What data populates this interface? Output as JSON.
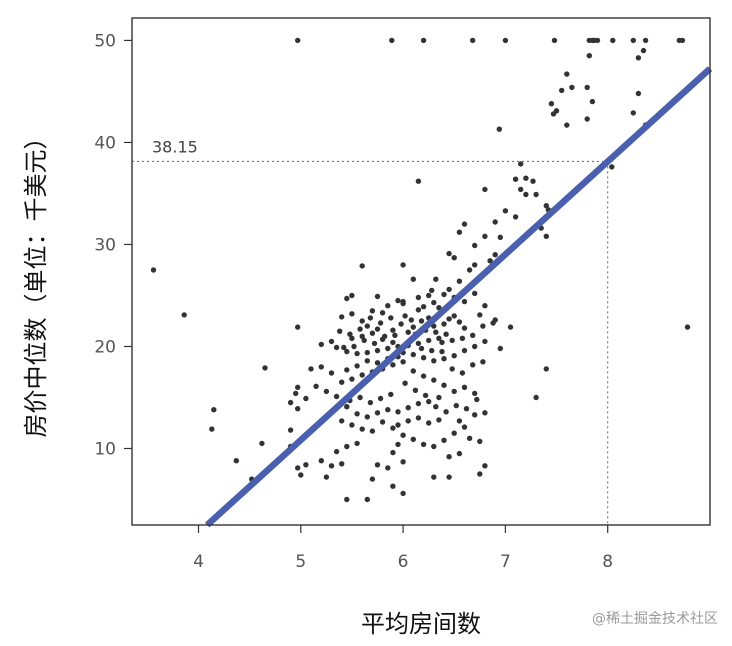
{
  "chart_data": {
    "type": "scatter",
    "xlabel": "平均房间数",
    "ylabel": "房价中位数（单位：千美元）",
    "xlim": [
      3.35,
      9.0
    ],
    "ylim": [
      2.5,
      52.2
    ],
    "xticks": [
      4,
      5,
      6,
      7,
      8
    ],
    "yticks": [
      10,
      20,
      30,
      40,
      50
    ],
    "grid": false,
    "regression_line": {
      "slope": 9.1,
      "intercept": -34.67,
      "color": "#4a5fad"
    },
    "annotation": {
      "x": 8,
      "y": 38.15,
      "label": "38.15"
    },
    "colors": {
      "points": "#333333",
      "line": "#4a5fad",
      "axis": "#333333"
    },
    "points": [
      [
        4.97,
        50
      ],
      [
        5.89,
        50
      ],
      [
        6.2,
        50
      ],
      [
        6.68,
        50
      ],
      [
        7.0,
        50
      ],
      [
        7.48,
        50
      ],
      [
        7.82,
        50
      ],
      [
        7.85,
        50
      ],
      [
        7.87,
        50
      ],
      [
        7.9,
        50
      ],
      [
        8.05,
        50
      ],
      [
        8.25,
        50
      ],
      [
        8.37,
        50
      ],
      [
        8.7,
        50
      ],
      [
        8.73,
        50
      ],
      [
        8.35,
        49
      ],
      [
        8.3,
        48.3
      ],
      [
        7.82,
        48.5
      ],
      [
        7.6,
        46.7
      ],
      [
        7.65,
        45.4
      ],
      [
        7.8,
        45.4
      ],
      [
        7.55,
        45.1
      ],
      [
        8.3,
        44.8
      ],
      [
        7.45,
        43.8
      ],
      [
        7.5,
        43.1
      ],
      [
        7.47,
        42.8
      ],
      [
        7.6,
        41.7
      ],
      [
        8.37,
        41.7
      ],
      [
        7.8,
        42.3
      ],
      [
        6.94,
        41.3
      ],
      [
        7.85,
        44.0
      ],
      [
        8.25,
        42.9
      ],
      [
        8.04,
        37.6
      ],
      [
        7.15,
        37.9
      ],
      [
        7.2,
        36.5
      ],
      [
        7.27,
        36.2
      ],
      [
        6.15,
        36.2
      ],
      [
        7.1,
        36.4
      ],
      [
        7.42,
        33.4
      ],
      [
        7.15,
        35.4
      ],
      [
        6.8,
        35.4
      ],
      [
        7.3,
        34.9
      ],
      [
        7.2,
        34.9
      ],
      [
        7.0,
        33.3
      ],
      [
        7.4,
        33.8
      ],
      [
        7.35,
        31.6
      ],
      [
        6.9,
        32.2
      ],
      [
        7.1,
        32.7
      ],
      [
        7.4,
        30.8
      ],
      [
        6.6,
        32.0
      ],
      [
        6.8,
        30.8
      ],
      [
        6.95,
        30.7
      ],
      [
        6.55,
        31.2
      ],
      [
        6.7,
        29.9
      ],
      [
        6.45,
        29.1
      ],
      [
        6.5,
        28.7
      ],
      [
        6.9,
        29.0
      ],
      [
        6.85,
        28.4
      ],
      [
        6.7,
        28.0
      ],
      [
        6.65,
        27.5
      ],
      [
        6.0,
        28.0
      ],
      [
        6.32,
        26.6
      ],
      [
        6.55,
        26.4
      ],
      [
        6.1,
        26.6
      ],
      [
        6.25,
        25.0
      ],
      [
        5.6,
        27.9
      ],
      [
        6.4,
        25.1
      ],
      [
        6.5,
        24.8
      ],
      [
        6.6,
        24.4
      ],
      [
        6.8,
        24.0
      ],
      [
        6.75,
        23.1
      ],
      [
        6.9,
        22.6
      ],
      [
        7.05,
        21.9
      ],
      [
        6.3,
        24.3
      ],
      [
        6.2,
        23.9
      ],
      [
        6.15,
        23.6
      ],
      [
        6.0,
        24.2
      ],
      [
        5.95,
        24.5
      ],
      [
        5.85,
        24.0
      ],
      [
        5.8,
        23.3
      ],
      [
        5.7,
        23.5
      ],
      [
        5.5,
        23.2
      ],
      [
        5.4,
        22.9
      ],
      [
        5.6,
        22.5
      ],
      [
        5.65,
        22.0
      ],
      [
        5.75,
        21.7
      ],
      [
        5.9,
        21.6
      ],
      [
        6.05,
        21.4
      ],
      [
        6.12,
        21.2
      ],
      [
        6.2,
        21.7
      ],
      [
        6.3,
        22.0
      ],
      [
        6.4,
        22.2
      ],
      [
        6.45,
        22.7
      ],
      [
        6.5,
        23.0
      ],
      [
        6.55,
        22.4
      ],
      [
        6.6,
        21.8
      ],
      [
        6.42,
        21.2
      ],
      [
        6.35,
        20.8
      ],
      [
        6.25,
        20.6
      ],
      [
        6.15,
        20.3
      ],
      [
        6.05,
        20.1
      ],
      [
        5.95,
        20.0
      ],
      [
        5.85,
        19.8
      ],
      [
        5.75,
        19.6
      ],
      [
        5.65,
        19.4
      ],
      [
        5.55,
        19.3
      ],
      [
        5.45,
        19.5
      ],
      [
        5.35,
        19.9
      ],
      [
        5.3,
        20.5
      ],
      [
        5.2,
        20.2
      ],
      [
        5.5,
        20.8
      ],
      [
        5.6,
        21.0
      ],
      [
        5.7,
        21.3
      ],
      [
        5.8,
        20.7
      ],
      [
        5.9,
        20.4
      ],
      [
        6.0,
        19.4
      ],
      [
        6.1,
        19.2
      ],
      [
        6.2,
        18.9
      ],
      [
        6.3,
        18.6
      ],
      [
        6.4,
        18.8
      ],
      [
        6.5,
        19.1
      ],
      [
        6.6,
        19.6
      ],
      [
        6.7,
        20.0
      ],
      [
        6.8,
        20.5
      ],
      [
        6.95,
        19.8
      ],
      [
        6.0,
        18.5
      ],
      [
        5.9,
        18.2
      ],
      [
        5.8,
        17.8
      ],
      [
        5.7,
        17.5
      ],
      [
        5.6,
        17.2
      ],
      [
        5.5,
        16.8
      ],
      [
        5.4,
        16.5
      ],
      [
        5.3,
        17.4
      ],
      [
        5.2,
        18.0
      ],
      [
        5.1,
        17.8
      ],
      [
        6.1,
        17.6
      ],
      [
        6.2,
        17.1
      ],
      [
        6.3,
        16.7
      ],
      [
        6.4,
        16.2
      ],
      [
        6.5,
        15.6
      ],
      [
        6.6,
        16.0
      ],
      [
        6.7,
        15.4
      ],
      [
        6.35,
        15.0
      ],
      [
        6.25,
        14.6
      ],
      [
        6.15,
        14.4
      ],
      [
        6.05,
        14.0
      ],
      [
        5.95,
        13.6
      ],
      [
        5.85,
        13.8
      ],
      [
        5.75,
        13.5
      ],
      [
        5.65,
        13.1
      ],
      [
        5.55,
        13.4
      ],
      [
        5.45,
        14.1
      ],
      [
        5.35,
        15.1
      ],
      [
        5.25,
        15.6
      ],
      [
        5.15,
        16.1
      ],
      [
        5.05,
        14.9
      ],
      [
        4.97,
        13.9
      ],
      [
        4.9,
        14.5
      ],
      [
        4.97,
        16.0
      ],
      [
        4.95,
        15.4
      ],
      [
        5.4,
        12.7
      ],
      [
        5.5,
        12.3
      ],
      [
        5.6,
        11.9
      ],
      [
        5.7,
        11.7
      ],
      [
        5.8,
        12.6
      ],
      [
        5.9,
        12.0
      ],
      [
        6.0,
        11.3
      ],
      [
        6.1,
        10.9
      ],
      [
        6.2,
        10.4
      ],
      [
        6.3,
        10.2
      ],
      [
        6.4,
        10.8
      ],
      [
        6.5,
        11.5
      ],
      [
        6.6,
        12.1
      ],
      [
        6.7,
        13.3
      ],
      [
        6.8,
        13.5
      ],
      [
        5.55,
        10.5
      ],
      [
        5.45,
        10.2
      ],
      [
        5.35,
        9.7
      ],
      [
        5.9,
        9.6
      ],
      [
        5.95,
        10.4
      ],
      [
        6.55,
        9.5
      ],
      [
        5.2,
        8.8
      ],
      [
        5.3,
        8.3
      ],
      [
        5.4,
        8.5
      ],
      [
        5.75,
        8.4
      ],
      [
        5.85,
        8.1
      ],
      [
        6.0,
        8.7
      ],
      [
        5.05,
        8.4
      ],
      [
        4.97,
        8.1
      ],
      [
        5.0,
        7.4
      ],
      [
        5.25,
        7.2
      ],
      [
        5.7,
        7.0
      ],
      [
        6.3,
        7.2
      ],
      [
        6.45,
        7.2
      ],
      [
        6.75,
        7.5
      ],
      [
        5.9,
        6.3
      ],
      [
        6.0,
        5.6
      ],
      [
        5.45,
        5.0
      ],
      [
        5.65,
        5.0
      ],
      [
        7.3,
        15.0
      ],
      [
        7.4,
        17.8
      ],
      [
        6.8,
        8.3
      ],
      [
        4.15,
        13.8
      ],
      [
        4.13,
        11.9
      ],
      [
        4.37,
        8.8
      ],
      [
        4.52,
        7.0
      ],
      [
        4.62,
        10.5
      ],
      [
        4.65,
        17.9
      ],
      [
        4.9,
        10.2
      ],
      [
        4.97,
        21.9
      ],
      [
        4.9,
        11.8
      ],
      [
        3.56,
        27.5
      ],
      [
        3.86,
        23.1
      ],
      [
        8.78,
        21.9
      ],
      [
        5.45,
        24.7
      ],
      [
        5.5,
        25.0
      ],
      [
        5.75,
        24.9
      ],
      [
        6.0,
        24.4
      ],
      [
        6.15,
        24.8
      ],
      [
        6.28,
        25.5
      ],
      [
        6.45,
        25.6
      ],
      [
        6.58,
        25.3
      ],
      [
        6.7,
        25.2
      ],
      [
        6.35,
        23.8
      ],
      [
        6.25,
        22.8
      ],
      [
        6.18,
        22.5
      ],
      [
        6.08,
        22.6
      ],
      [
        5.98,
        22.2
      ],
      [
        5.88,
        22.8
      ],
      [
        5.78,
        22.3
      ],
      [
        5.68,
        22.8
      ],
      [
        5.58,
        21.7
      ],
      [
        5.48,
        21.2
      ],
      [
        5.38,
        21.5
      ],
      [
        6.02,
        23.0
      ],
      [
        6.1,
        21.9
      ],
      [
        6.22,
        21.6
      ],
      [
        6.32,
        21.4
      ],
      [
        6.38,
        20.4
      ],
      [
        6.48,
        20.6
      ],
      [
        6.58,
        20.8
      ],
      [
        6.68,
        21.1
      ],
      [
        6.78,
        22.0
      ],
      [
        6.88,
        22.3
      ],
      [
        5.92,
        21.1
      ],
      [
        5.82,
        21.0
      ],
      [
        5.72,
        20.3
      ],
      [
        5.62,
        20.6
      ],
      [
        5.52,
        20.0
      ],
      [
        5.42,
        19.9
      ],
      [
        6.08,
        20.7
      ],
      [
        6.18,
        19.8
      ],
      [
        6.28,
        19.6
      ],
      [
        6.38,
        19.5
      ],
      [
        6.48,
        17.8
      ],
      [
        6.58,
        17.4
      ],
      [
        6.68,
        18.2
      ],
      [
        6.78,
        18.5
      ],
      [
        5.95,
        19.0
      ],
      [
        5.85,
        18.8
      ],
      [
        5.75,
        18.4
      ],
      [
        5.65,
        18.6
      ],
      [
        5.55,
        18.1
      ],
      [
        5.45,
        17.7
      ],
      [
        6.02,
        16.4
      ],
      [
        6.12,
        15.7
      ],
      [
        6.22,
        15.2
      ],
      [
        6.32,
        14.1
      ],
      [
        6.42,
        13.6
      ],
      [
        6.52,
        14.2
      ],
      [
        6.62,
        13.9
      ],
      [
        6.72,
        14.8
      ],
      [
        5.88,
        15.3
      ],
      [
        5.78,
        14.9
      ],
      [
        5.68,
        14.5
      ],
      [
        5.58,
        15.0
      ],
      [
        5.48,
        14.7
      ],
      [
        6.35,
        12.8
      ],
      [
        6.25,
        12.5
      ],
      [
        6.15,
        13.0
      ],
      [
        6.05,
        12.7
      ],
      [
        5.95,
        12.3
      ],
      [
        6.55,
        12.7
      ],
      [
        6.65,
        11.0
      ],
      [
        6.75,
        10.7
      ],
      [
        6.45,
        9.2
      ]
    ]
  },
  "watermark": "@稀土掘金技术社区"
}
